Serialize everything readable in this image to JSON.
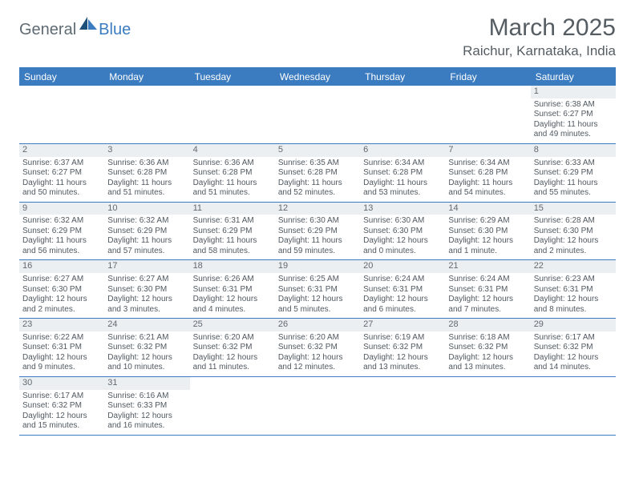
{
  "logo": {
    "text1": "General",
    "text2": "Blue",
    "sail_dark": "#1e4f7a",
    "sail_light": "#3b7bbf"
  },
  "header": {
    "month": "March 2025",
    "location": "Raichur, Karnataka, India"
  },
  "colors": {
    "header_bg": "#3b7bbf",
    "rule": "#3b7bbf",
    "daynum_bg": "#eceff1",
    "text": "#505860"
  },
  "dayNames": [
    "Sunday",
    "Monday",
    "Tuesday",
    "Wednesday",
    "Thursday",
    "Friday",
    "Saturday"
  ],
  "weeks": [
    [
      null,
      null,
      null,
      null,
      null,
      null,
      {
        "n": "1",
        "sr": "Sunrise: 6:38 AM",
        "ss": "Sunset: 6:27 PM",
        "d1": "Daylight: 11 hours",
        "d2": "and 49 minutes."
      }
    ],
    [
      {
        "n": "2",
        "sr": "Sunrise: 6:37 AM",
        "ss": "Sunset: 6:27 PM",
        "d1": "Daylight: 11 hours",
        "d2": "and 50 minutes."
      },
      {
        "n": "3",
        "sr": "Sunrise: 6:36 AM",
        "ss": "Sunset: 6:28 PM",
        "d1": "Daylight: 11 hours",
        "d2": "and 51 minutes."
      },
      {
        "n": "4",
        "sr": "Sunrise: 6:36 AM",
        "ss": "Sunset: 6:28 PM",
        "d1": "Daylight: 11 hours",
        "d2": "and 51 minutes."
      },
      {
        "n": "5",
        "sr": "Sunrise: 6:35 AM",
        "ss": "Sunset: 6:28 PM",
        "d1": "Daylight: 11 hours",
        "d2": "and 52 minutes."
      },
      {
        "n": "6",
        "sr": "Sunrise: 6:34 AM",
        "ss": "Sunset: 6:28 PM",
        "d1": "Daylight: 11 hours",
        "d2": "and 53 minutes."
      },
      {
        "n": "7",
        "sr": "Sunrise: 6:34 AM",
        "ss": "Sunset: 6:28 PM",
        "d1": "Daylight: 11 hours",
        "d2": "and 54 minutes."
      },
      {
        "n": "8",
        "sr": "Sunrise: 6:33 AM",
        "ss": "Sunset: 6:29 PM",
        "d1": "Daylight: 11 hours",
        "d2": "and 55 minutes."
      }
    ],
    [
      {
        "n": "9",
        "sr": "Sunrise: 6:32 AM",
        "ss": "Sunset: 6:29 PM",
        "d1": "Daylight: 11 hours",
        "d2": "and 56 minutes."
      },
      {
        "n": "10",
        "sr": "Sunrise: 6:32 AM",
        "ss": "Sunset: 6:29 PM",
        "d1": "Daylight: 11 hours",
        "d2": "and 57 minutes."
      },
      {
        "n": "11",
        "sr": "Sunrise: 6:31 AM",
        "ss": "Sunset: 6:29 PM",
        "d1": "Daylight: 11 hours",
        "d2": "and 58 minutes."
      },
      {
        "n": "12",
        "sr": "Sunrise: 6:30 AM",
        "ss": "Sunset: 6:29 PM",
        "d1": "Daylight: 11 hours",
        "d2": "and 59 minutes."
      },
      {
        "n": "13",
        "sr": "Sunrise: 6:30 AM",
        "ss": "Sunset: 6:30 PM",
        "d1": "Daylight: 12 hours",
        "d2": "and 0 minutes."
      },
      {
        "n": "14",
        "sr": "Sunrise: 6:29 AM",
        "ss": "Sunset: 6:30 PM",
        "d1": "Daylight: 12 hours",
        "d2": "and 1 minute."
      },
      {
        "n": "15",
        "sr": "Sunrise: 6:28 AM",
        "ss": "Sunset: 6:30 PM",
        "d1": "Daylight: 12 hours",
        "d2": "and 2 minutes."
      }
    ],
    [
      {
        "n": "16",
        "sr": "Sunrise: 6:27 AM",
        "ss": "Sunset: 6:30 PM",
        "d1": "Daylight: 12 hours",
        "d2": "and 2 minutes."
      },
      {
        "n": "17",
        "sr": "Sunrise: 6:27 AM",
        "ss": "Sunset: 6:30 PM",
        "d1": "Daylight: 12 hours",
        "d2": "and 3 minutes."
      },
      {
        "n": "18",
        "sr": "Sunrise: 6:26 AM",
        "ss": "Sunset: 6:31 PM",
        "d1": "Daylight: 12 hours",
        "d2": "and 4 minutes."
      },
      {
        "n": "19",
        "sr": "Sunrise: 6:25 AM",
        "ss": "Sunset: 6:31 PM",
        "d1": "Daylight: 12 hours",
        "d2": "and 5 minutes."
      },
      {
        "n": "20",
        "sr": "Sunrise: 6:24 AM",
        "ss": "Sunset: 6:31 PM",
        "d1": "Daylight: 12 hours",
        "d2": "and 6 minutes."
      },
      {
        "n": "21",
        "sr": "Sunrise: 6:24 AM",
        "ss": "Sunset: 6:31 PM",
        "d1": "Daylight: 12 hours",
        "d2": "and 7 minutes."
      },
      {
        "n": "22",
        "sr": "Sunrise: 6:23 AM",
        "ss": "Sunset: 6:31 PM",
        "d1": "Daylight: 12 hours",
        "d2": "and 8 minutes."
      }
    ],
    [
      {
        "n": "23",
        "sr": "Sunrise: 6:22 AM",
        "ss": "Sunset: 6:31 PM",
        "d1": "Daylight: 12 hours",
        "d2": "and 9 minutes."
      },
      {
        "n": "24",
        "sr": "Sunrise: 6:21 AM",
        "ss": "Sunset: 6:32 PM",
        "d1": "Daylight: 12 hours",
        "d2": "and 10 minutes."
      },
      {
        "n": "25",
        "sr": "Sunrise: 6:20 AM",
        "ss": "Sunset: 6:32 PM",
        "d1": "Daylight: 12 hours",
        "d2": "and 11 minutes."
      },
      {
        "n": "26",
        "sr": "Sunrise: 6:20 AM",
        "ss": "Sunset: 6:32 PM",
        "d1": "Daylight: 12 hours",
        "d2": "and 12 minutes."
      },
      {
        "n": "27",
        "sr": "Sunrise: 6:19 AM",
        "ss": "Sunset: 6:32 PM",
        "d1": "Daylight: 12 hours",
        "d2": "and 13 minutes."
      },
      {
        "n": "28",
        "sr": "Sunrise: 6:18 AM",
        "ss": "Sunset: 6:32 PM",
        "d1": "Daylight: 12 hours",
        "d2": "and 13 minutes."
      },
      {
        "n": "29",
        "sr": "Sunrise: 6:17 AM",
        "ss": "Sunset: 6:32 PM",
        "d1": "Daylight: 12 hours",
        "d2": "and 14 minutes."
      }
    ],
    [
      {
        "n": "30",
        "sr": "Sunrise: 6:17 AM",
        "ss": "Sunset: 6:32 PM",
        "d1": "Daylight: 12 hours",
        "d2": "and 15 minutes."
      },
      {
        "n": "31",
        "sr": "Sunrise: 6:16 AM",
        "ss": "Sunset: 6:33 PM",
        "d1": "Daylight: 12 hours",
        "d2": "and 16 minutes."
      },
      null,
      null,
      null,
      null,
      null
    ]
  ]
}
